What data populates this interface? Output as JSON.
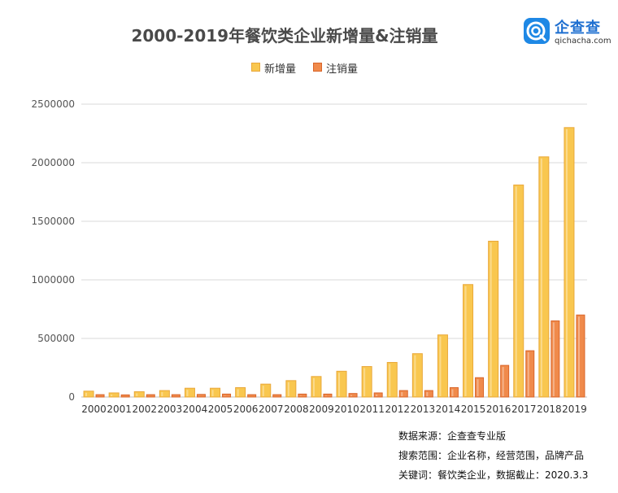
{
  "title": "2000-2019年餐饮类企业新增量&注销量",
  "logo": {
    "name_cn": "企查查",
    "name_en": "qichacha.com"
  },
  "colors": {
    "new": "#f9c74f",
    "new_border": "#e9a83a",
    "cancel": "#f08a4b",
    "cancel_border": "#d9652a"
  },
  "chart_data": {
    "type": "bar",
    "categories": [
      "2000",
      "2001",
      "2002",
      "2003",
      "2004",
      "2005",
      "2006",
      "2007",
      "2008",
      "2009",
      "2010",
      "2011",
      "2012",
      "2013",
      "2014",
      "2015",
      "2016",
      "2017",
      "2018",
      "2019"
    ],
    "series": [
      {
        "name": "新增量",
        "values": [
          50000,
          35000,
          45000,
          55000,
          75000,
          75000,
          80000,
          110000,
          140000,
          175000,
          220000,
          260000,
          295000,
          370000,
          530000,
          960000,
          1330000,
          1810000,
          2050000,
          2300000
        ]
      },
      {
        "name": "注销量",
        "values": [
          20000,
          18000,
          20000,
          20000,
          22000,
          25000,
          20000,
          20000,
          25000,
          25000,
          30000,
          35000,
          55000,
          55000,
          80000,
          165000,
          270000,
          395000,
          650000,
          700000
        ]
      }
    ],
    "ylim": [
      0,
      2500000
    ],
    "yticks": [
      "0",
      "500000",
      "1000000",
      "1500000",
      "2000000",
      "2500000"
    ],
    "grid": true,
    "legend_position": "top-center"
  },
  "source": {
    "line1": "数据来源：企查查专业版",
    "line2": "搜索范围：企业名称，经营范围，品牌产品",
    "line3": "关键词：餐饮类企业，数据截止：2020.3.3"
  }
}
